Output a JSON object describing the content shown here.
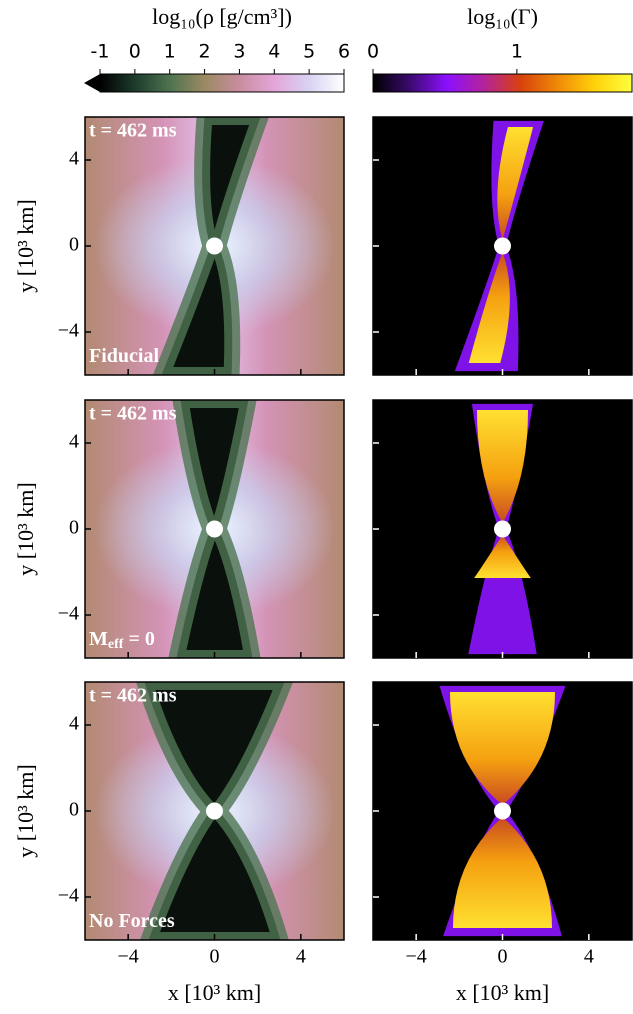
{
  "chart_data": [
    {
      "type": "colorbar",
      "label": "log₁₀(ρ [g/cm³])",
      "xlim": [
        -1,
        6
      ],
      "xticks": [
        -1,
        0,
        1,
        2,
        3,
        4,
        5,
        6
      ],
      "extend": "min",
      "colors": [
        "#000000",
        "#1d3b2c",
        "#4f7350",
        "#9b8a63",
        "#c98d9f",
        "#e3a6d8",
        "#d9d3f4",
        "#ffffff"
      ]
    },
    {
      "type": "colorbar",
      "label": "log₁₀(Γ)",
      "xlim": [
        0,
        1.8
      ],
      "xticks": [
        0,
        1
      ],
      "colors": [
        "#000000",
        "#3b0a6e",
        "#8c10ff",
        "#b4239a",
        "#d8420c",
        "#f08a08",
        "#ffd20a",
        "#ffff40"
      ]
    },
    {
      "type": "density",
      "time": "t = 462 ms",
      "label": [
        "Fiducial"
      ],
      "xlim": [
        -6,
        6
      ],
      "ylim": [
        -6,
        6
      ],
      "xticks": [
        {
          "value": -4,
          "label": "−4"
        },
        0,
        4
      ],
      "yticks": [
        {
          "value": -4,
          "label": "−4"
        },
        0,
        4
      ],
      "xtick_labels": false,
      "ytick_labels": true,
      "ylabel": "y [10³ km]"
    },
    {
      "type": "gamma",
      "xlim": [
        -6,
        6
      ],
      "ylim": [
        -6,
        6
      ],
      "xticks": [
        {
          "value": -4,
          "label": "−4"
        },
        0,
        4
      ],
      "yticks": [
        {
          "value": -4,
          "label": "−4"
        },
        0,
        4
      ],
      "xtick_labels": false,
      "ytick_labels": false
    },
    {
      "type": "density",
      "time": "t = 462 ms",
      "label": [
        "M",
        "eff",
        " = 0"
      ],
      "xlim": [
        -6,
        6
      ],
      "ylim": [
        -6,
        6
      ],
      "xticks": [
        {
          "value": -4,
          "label": "−4"
        },
        0,
        4
      ],
      "yticks": [
        {
          "value": -4,
          "label": "−4"
        },
        0,
        4
      ],
      "xtick_labels": false,
      "ytick_labels": true,
      "ylabel": "y [10³ km]"
    },
    {
      "type": "gamma",
      "xlim": [
        -6,
        6
      ],
      "ylim": [
        -6,
        6
      ],
      "xticks": [
        {
          "value": -4,
          "label": "−4"
        },
        0,
        4
      ],
      "yticks": [
        {
          "value": -4,
          "label": "−4"
        },
        0,
        4
      ],
      "xtick_labels": false,
      "ytick_labels": false
    },
    {
      "type": "density",
      "time": "t = 462 ms",
      "label": [
        "No Forces"
      ],
      "xlim": [
        -6,
        6
      ],
      "ylim": [
        -6,
        6
      ],
      "xticks": [
        {
          "value": -4,
          "label": "−4"
        },
        0,
        4
      ],
      "yticks": [
        {
          "value": -4,
          "label": "−4"
        },
        0,
        4
      ],
      "xtick_labels": true,
      "ytick_labels": true,
      "ylabel": "y [10³ km]",
      "xlabel": "x [10³ km]"
    },
    {
      "type": "gamma",
      "xlim": [
        -6,
        6
      ],
      "ylim": [
        -6,
        6
      ],
      "xticks": [
        {
          "value": -4,
          "label": "−4"
        },
        0,
        4
      ],
      "yticks": [
        {
          "value": -4,
          "label": "−4"
        },
        0,
        4
      ],
      "xtick_labels": true,
      "ytick_labels": false,
      "xlabel": "x [10³ km]"
    }
  ]
}
